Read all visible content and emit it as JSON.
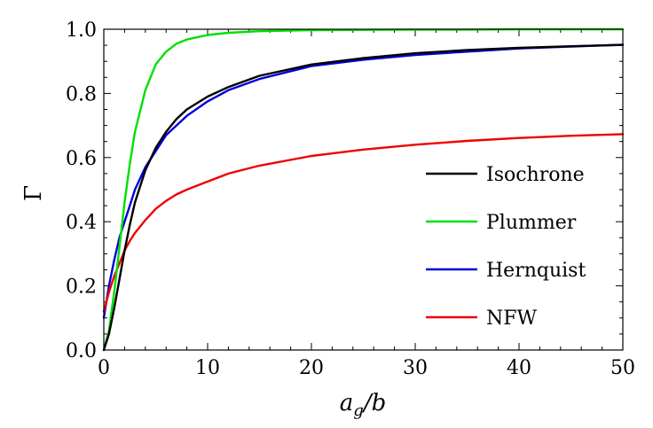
{
  "chart_data": {
    "type": "line",
    "xlabel_main": "a",
    "xlabel_sub": "g",
    "xlabel_tail": "/b",
    "ylabel": "Γ",
    "xlim": [
      0,
      50
    ],
    "ylim": [
      0,
      1
    ],
    "xticks": [
      0,
      10,
      20,
      30,
      40,
      50
    ],
    "yticks": [
      0,
      0.2,
      0.4,
      0.6,
      0.8,
      1.0
    ],
    "xtick_labels": [
      "0",
      "10",
      "20",
      "30",
      "40",
      "50"
    ],
    "ytick_labels": [
      "0.0",
      "0.2",
      "0.4",
      "0.6",
      "0.8",
      "1.0"
    ],
    "grid": false,
    "legend_position": "right-center",
    "x": [
      0,
      0.5,
      1,
      1.5,
      2,
      2.5,
      3,
      4,
      5,
      6,
      7,
      8,
      10,
      12,
      15,
      20,
      25,
      30,
      35,
      40,
      45,
      50
    ],
    "series": [
      {
        "name": "Isochrone",
        "color": "#000000",
        "values": [
          0.0,
          0.05,
          0.13,
          0.22,
          0.31,
          0.39,
          0.46,
          0.56,
          0.63,
          0.68,
          0.72,
          0.75,
          0.79,
          0.82,
          0.855,
          0.89,
          0.91,
          0.925,
          0.935,
          0.942,
          0.947,
          0.951
        ]
      },
      {
        "name": "Plummer",
        "color": "#00e000",
        "values": [
          0.0,
          0.06,
          0.18,
          0.32,
          0.46,
          0.58,
          0.68,
          0.81,
          0.89,
          0.93,
          0.955,
          0.968,
          0.982,
          0.989,
          0.994,
          0.997,
          0.998,
          0.999,
          0.999,
          1.0,
          1.0,
          1.0
        ]
      },
      {
        "name": "Hernquist",
        "color": "#0000dd",
        "values": [
          0.1,
          0.2,
          0.28,
          0.35,
          0.4,
          0.45,
          0.5,
          0.57,
          0.62,
          0.67,
          0.7,
          0.73,
          0.775,
          0.81,
          0.845,
          0.885,
          0.905,
          0.92,
          0.93,
          0.94,
          0.946,
          0.952
        ]
      },
      {
        "name": "NFW",
        "color": "#ee0000",
        "values": [
          0.12,
          0.18,
          0.23,
          0.27,
          0.31,
          0.34,
          0.365,
          0.405,
          0.44,
          0.465,
          0.485,
          0.5,
          0.525,
          0.55,
          0.575,
          0.605,
          0.625,
          0.64,
          0.652,
          0.661,
          0.668,
          0.673
        ]
      }
    ]
  }
}
